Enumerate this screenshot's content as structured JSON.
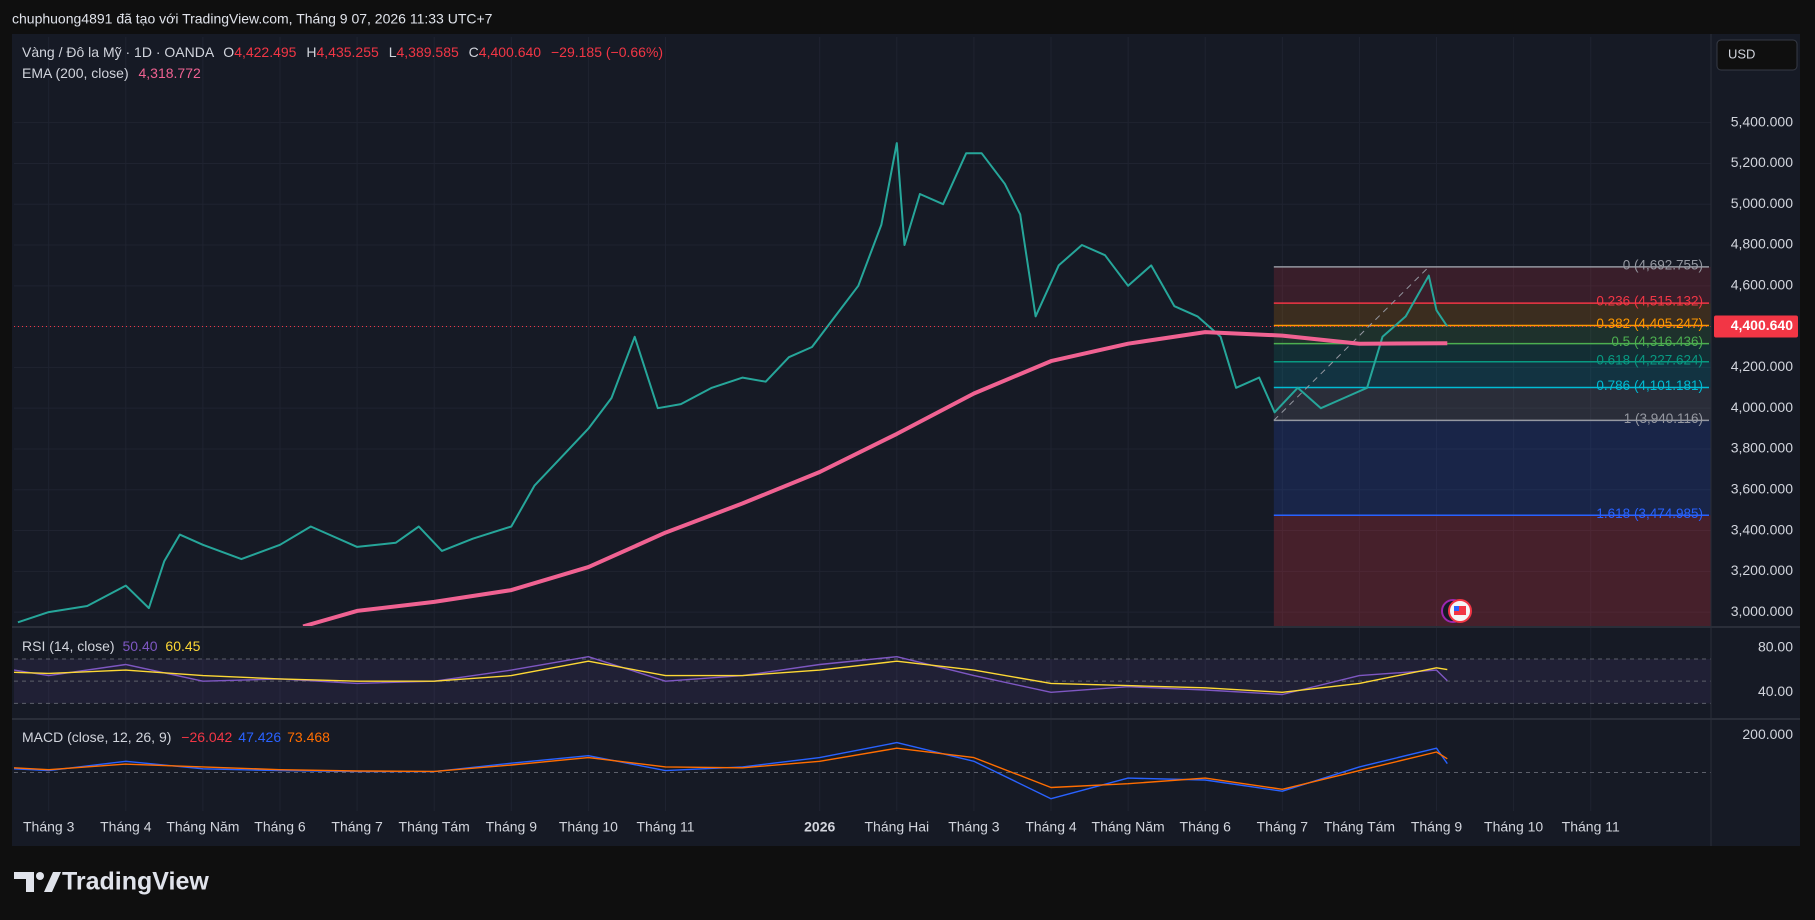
{
  "watermark": "chuphuong4891 đã tạo với TradingView.com, Tháng 9 07, 2026 11:33 UTC+7",
  "currency": "USD",
  "brand": "TradingView",
  "ohlc": [
    {
      "key": "O",
      "value": "4,422.495"
    },
    {
      "key": "H",
      "value": "4,435.255"
    },
    {
      "key": "L",
      "value": "4,389.585"
    },
    {
      "key": "C",
      "value": "4,400.640"
    }
  ],
  "change": "−29.185 (−0.66%)",
  "ema_value": "4,318.772",
  "chart_data": [
    {
      "type": "line",
      "xlim": [
        -0.45,
        21.56
      ],
      "xticks": [
        {
          "value": 0,
          "label": "Tháng 3"
        },
        {
          "value": 1,
          "label": "Tháng 4"
        },
        {
          "value": 2,
          "label": "Tháng Năm"
        },
        {
          "value": 3,
          "label": "Tháng 6"
        },
        {
          "value": 4,
          "label": "Tháng 7"
        },
        {
          "value": 5,
          "label": "Tháng Tám"
        },
        {
          "value": 6,
          "label": "Tháng 9"
        },
        {
          "value": 7,
          "label": "Tháng 10"
        },
        {
          "value": 8,
          "label": "Tháng 11"
        },
        {
          "value": 10,
          "label": "2026"
        },
        {
          "value": 11,
          "label": "Tháng Hai"
        },
        {
          "value": 12,
          "label": "Tháng 3"
        },
        {
          "value": 13,
          "label": "Tháng 4"
        },
        {
          "value": 14,
          "label": "Tháng Năm"
        },
        {
          "value": 15,
          "label": "Tháng 6"
        },
        {
          "value": 16,
          "label": "Tháng 7"
        },
        {
          "value": 17,
          "label": "Tháng Tám"
        },
        {
          "value": 18,
          "label": "Tháng 9"
        },
        {
          "value": 19,
          "label": "Tháng 10"
        },
        {
          "value": 20,
          "label": "Tháng 11"
        }
      ],
      "ylim": [
        2932,
        5820
      ],
      "yticks": [
        {
          "value": 3000,
          "label": "3,000.000"
        },
        {
          "value": 3200,
          "label": "3,200.000"
        },
        {
          "value": 3400,
          "label": "3,400.000"
        },
        {
          "value": 3600,
          "label": "3,600.000"
        },
        {
          "value": 3800,
          "label": "3,800.000"
        },
        {
          "value": 4000,
          "label": "4,000.000"
        },
        {
          "value": 4200,
          "label": "4,200.000"
        },
        {
          "value": 4400,
          "label": "4,400.000"
        },
        {
          "value": 4600,
          "label": "4,600.000"
        },
        {
          "value": 4800,
          "label": "4,800.000"
        },
        {
          "value": 5000,
          "label": "5,000.000"
        },
        {
          "value": 5200,
          "label": "5,200.000"
        },
        {
          "value": 5400,
          "label": "5,400.000"
        }
      ],
      "grid": true,
      "series": [
        {
          "name": "Vàng / Đô la Mỹ · 1D · OANDA",
          "color": "#26a69a",
          "x": [
            -0.4,
            0,
            0.5,
            1,
            1.3,
            1.5,
            1.7,
            2,
            2.5,
            3,
            3.4,
            4,
            4.5,
            4.8,
            5.1,
            5.5,
            6,
            6.3,
            6.7,
            7,
            7.3,
            7.6,
            7.9,
            8.2,
            8.6,
            9,
            9.3,
            9.6,
            9.9,
            10.2,
            10.5,
            10.8,
            11,
            11.1,
            11.3,
            11.6,
            11.9,
            12.1,
            12.4,
            12.6,
            12.8,
            13.1,
            13.4,
            13.7,
            14,
            14.3,
            14.6,
            14.9,
            15.2,
            15.4,
            15.7,
            15.9,
            16.2,
            16.5,
            16.8,
            17.1,
            17.3,
            17.6,
            17.9,
            18.0,
            18.14
          ],
          "values": [
            2950,
            3000,
            3030,
            3130,
            3020,
            3250,
            3380,
            3330,
            3260,
            3330,
            3420,
            3320,
            3340,
            3420,
            3300,
            3360,
            3420,
            3620,
            3780,
            3900,
            4050,
            4350,
            4000,
            4020,
            4100,
            4150,
            4130,
            4250,
            4300,
            4450,
            4600,
            4900,
            5300,
            4800,
            5050,
            5000,
            5250,
            5250,
            5100,
            4950,
            4450,
            4700,
            4800,
            4750,
            4600,
            4700,
            4500,
            4450,
            4350,
            4100,
            4150,
            3980,
            4100,
            4000,
            4050,
            4100,
            4350,
            4450,
            4650,
            4480,
            4400.64
          ]
        },
        {
          "name": "EMA (200, close)",
          "color": "#f06292",
          "x": [
            3.3,
            4,
            5,
            6,
            7,
            8,
            9,
            10,
            11,
            12,
            13,
            14,
            15,
            16,
            17,
            18.14
          ],
          "values": [
            2930,
            3006,
            3050,
            3108,
            3221,
            3390,
            3533,
            3687,
            3874,
            4072,
            4231,
            4316,
            4373,
            4356,
            4316,
            4318.772
          ]
        }
      ],
      "last_price": {
        "value": 4400.64,
        "label": "4,400.640",
        "color": "#f23645"
      },
      "fib_anchor_x": [
        15.89,
        17.9
      ],
      "fib_levels": [
        {
          "value": 4692.755,
          "label": "0 (4,692.755)",
          "color": "#9598a1"
        },
        {
          "value": 4515.132,
          "label": "0.236 (4,515.132)",
          "color": "#f23645"
        },
        {
          "value": 4405.247,
          "label": "0.382 (4,405.247)",
          "color": "#ff9800"
        },
        {
          "value": 4316.436,
          "label": "0.5 (4,316.436)",
          "color": "#4caf50"
        },
        {
          "value": 4227.624,
          "label": "0.618 (4,227.624)",
          "color": "#089981"
        },
        {
          "value": 4101.181,
          "label": "0.786 (4,101.181)",
          "color": "#00bcd4"
        },
        {
          "value": 3940.116,
          "label": "1 (3,940.116)",
          "color": "#9598a1"
        },
        {
          "value": 3474.985,
          "label": "1.618 (3,474.985)",
          "color": "#2962ff"
        }
      ]
    },
    {
      "type": "line",
      "title": "RSI (14, close)",
      "readout": [
        "50.40",
        "60.45"
      ],
      "ylim": [
        16.8,
        97.9
      ],
      "yticks": [
        {
          "value": 80,
          "label": "80.00"
        },
        {
          "value": 40,
          "label": "40.00"
        }
      ],
      "bands": [
        70,
        50,
        30
      ],
      "series": [
        {
          "color": "#7e57c2",
          "x": [
            -0.45,
            0,
            1,
            2,
            3,
            4,
            5,
            6,
            7,
            8,
            9,
            10,
            11,
            12,
            13,
            14,
            15,
            16,
            17,
            18,
            18.14
          ],
          "values": [
            60,
            55,
            65,
            50,
            52,
            48,
            50,
            60,
            72,
            50,
            55,
            65,
            72,
            55,
            40,
            45,
            42,
            38,
            55,
            60,
            50.4
          ]
        },
        {
          "color": "#fdd835",
          "x": [
            -0.45,
            0,
            1,
            2,
            3,
            4,
            5,
            6,
            7,
            8,
            9,
            10,
            11,
            12,
            13,
            14,
            15,
            16,
            17,
            18,
            18.14
          ],
          "values": [
            58,
            57,
            60,
            55,
            52,
            50,
            50,
            55,
            68,
            55,
            55,
            60,
            68,
            60,
            48,
            46,
            44,
            40,
            48,
            62,
            60.45
          ]
        }
      ]
    },
    {
      "type": "line",
      "title": "MACD (close, 12, 26, 9)",
      "readout": [
        {
          "text": "−26.042",
          "color": "#f23645"
        },
        {
          "text": "47.426",
          "color": "#2962ff"
        },
        {
          "text": "73.468",
          "color": "#ff6d00"
        }
      ],
      "ylim": [
        -206,
        281
      ],
      "yticks": [
        {
          "value": 200,
          "label": "200.000"
        }
      ],
      "zero_line": true,
      "series": [
        {
          "color": "#2962ff",
          "x": [
            -0.45,
            0,
            1,
            2,
            3,
            4,
            5,
            6,
            7,
            8,
            9,
            10,
            11,
            12,
            13,
            14,
            15,
            16,
            17,
            18,
            18.14
          ],
          "values": [
            20,
            10,
            60,
            20,
            10,
            5,
            5,
            50,
            90,
            10,
            30,
            80,
            160,
            60,
            -140,
            -30,
            -40,
            -100,
            30,
            130,
            47.426
          ]
        },
        {
          "color": "#ff6d00",
          "x": [
            -0.45,
            0,
            1,
            2,
            3,
            4,
            5,
            6,
            7,
            8,
            9,
            10,
            11,
            12,
            13,
            14,
            15,
            16,
            17,
            18,
            18.14
          ],
          "values": [
            25,
            15,
            45,
            30,
            15,
            8,
            6,
            40,
            80,
            30,
            25,
            60,
            130,
            80,
            -80,
            -60,
            -30,
            -90,
            10,
            110,
            73.468
          ]
        }
      ]
    }
  ]
}
